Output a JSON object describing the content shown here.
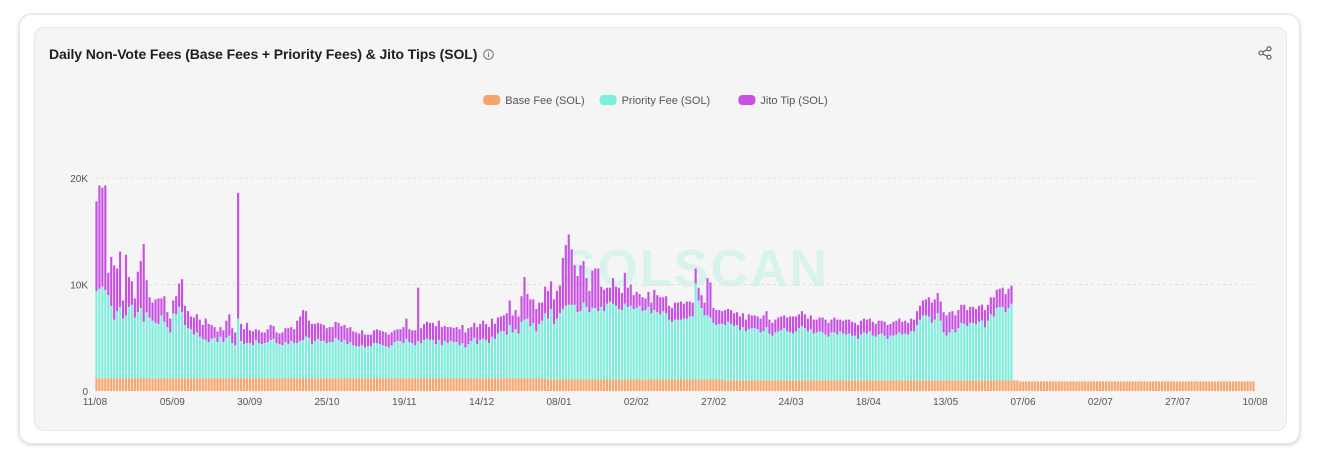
{
  "title": "Daily Non-Vote Fees (Base Fees + Priority Fees) & Jito Tips (SOL)",
  "icons": {
    "info": "info-icon",
    "share": "share-icon"
  },
  "watermark": "SOLSCAN",
  "colors": {
    "base_fee": "#f7a36a",
    "priority_fee": "#7feedd",
    "jito_tip": "#c84fe3",
    "grid": "#e2e2e2",
    "axis_text": "#555555"
  },
  "chart_data": {
    "type": "bar",
    "stacked": true,
    "title": "Daily Non-Vote Fees (Base Fees + Priority Fees) & Jito Tips (SOL)",
    "xlabel": "",
    "ylabel": "",
    "ylim": [
      0,
      20000
    ],
    "yticks": [
      {
        "value": 0,
        "label": "0"
      },
      {
        "value": 10000,
        "label": "10K"
      },
      {
        "value": 20000,
        "label": "20K"
      }
    ],
    "grid": true,
    "legend_position": "top-center",
    "x_tick_labels": [
      "11/08",
      "05/09",
      "30/09",
      "25/10",
      "19/11",
      "14/12",
      "08/01",
      "02/02",
      "27/02",
      "24/03",
      "18/04",
      "13/05",
      "07/06",
      "02/07",
      "27/07",
      "10/08"
    ],
    "series": [
      {
        "name": "Base Fee (SOL)",
        "color": "#f7a36a",
        "values": [
          1200,
          1200,
          1200,
          1200,
          1200,
          1200,
          1200,
          1200,
          1200,
          1200,
          1200,
          1200,
          1200,
          1200,
          1200,
          1200,
          1200,
          1200,
          1200,
          1200,
          1200,
          1200,
          1200,
          1200,
          1200,
          1200,
          1200,
          1200,
          1200,
          1200,
          1200,
          1200,
          1200,
          1200,
          1200,
          1200,
          1200,
          1200,
          1200,
          1200,
          1200,
          1200,
          1200,
          1200,
          1200,
          1200,
          1200,
          1200,
          1200,
          1200,
          1200,
          1200,
          1200,
          1200,
          1200,
          1200,
          1200,
          1200,
          1200,
          1200,
          1200,
          1200,
          1200,
          1200,
          1200,
          1200,
          1200,
          1200,
          1200,
          1200,
          1200,
          1200,
          1200,
          1200,
          1200,
          1200,
          1200,
          1200,
          1200,
          1200,
          1200,
          1200,
          1200,
          1200,
          1200,
          1200,
          1200,
          1200,
          1200,
          1200,
          1200,
          1200,
          1200,
          1200,
          1200,
          1200,
          1200,
          1200,
          1200,
          1200,
          1200,
          1200,
          1200,
          1200,
          1200,
          1200,
          1200,
          1200,
          1200,
          1200,
          1200,
          1200,
          1200,
          1200,
          1200,
          1200,
          1200,
          1200,
          1200,
          1200,
          1200,
          1200,
          1200,
          1200,
          1200,
          1200,
          1200,
          1200,
          1200,
          1200,
          1200,
          1200,
          1200,
          1200,
          1200,
          1200,
          1200,
          1200,
          1200,
          1200,
          1200,
          1200,
          1200,
          1200,
          1200,
          1200,
          1200,
          1200,
          1200,
          1200,
          1200,
          1200,
          1200,
          1100,
          1100,
          1100,
          1100,
          1100,
          1100,
          1100,
          1100,
          1100,
          1100,
          1100,
          1100,
          1100,
          1100,
          1100,
          1100,
          1100,
          1100,
          1100,
          1100,
          1100,
          1100,
          1100,
          1100,
          1100,
          1100,
          1100,
          1100,
          1100,
          1100,
          1100,
          1100,
          1100,
          1100,
          1100,
          1100,
          1100,
          1100,
          1100,
          1100,
          1100,
          1100,
          1100,
          1100,
          1100,
          1100,
          1100,
          1100,
          1100,
          1100,
          1100,
          1100,
          1100,
          1100,
          1100,
          1100,
          1100,
          1100,
          1100,
          1100,
          1000,
          1000,
          1000,
          1000,
          1000,
          1000,
          1000,
          1000,
          1000,
          1000,
          1000,
          1000,
          1000,
          1000,
          1000,
          1000,
          1000,
          1000,
          1000,
          1000,
          1000,
          1000,
          1000,
          1000,
          1000,
          1000,
          1000,
          1000,
          1000,
          1000,
          1000,
          1000,
          1000,
          1000,
          1000,
          1000,
          1000,
          1000,
          1000,
          1000,
          1000,
          1000,
          1000,
          1000,
          1000,
          1000,
          1000,
          1000,
          1000,
          1000,
          1000,
          1000,
          1000,
          1000,
          1000,
          1000,
          1000,
          1000,
          1000,
          1000,
          1000,
          1000,
          1000,
          1000,
          1000,
          1000,
          1000,
          1000,
          1000,
          1000,
          1000,
          1000,
          1000,
          1000,
          1000,
          1000,
          1000,
          1000,
          1000,
          1000,
          1000,
          1000,
          1000,
          1000,
          1000,
          1000,
          1000,
          1000,
          1000,
          1000,
          1000,
          1000,
          1000,
          1000,
          1000,
          1000,
          1000,
          1000,
          1000,
          1000,
          900,
          900,
          900,
          900,
          900,
          900,
          900,
          900,
          900,
          900,
          900,
          900,
          900,
          900,
          900,
          900,
          900,
          900,
          900,
          900,
          900,
          900,
          900,
          900,
          900,
          900,
          900,
          900,
          900,
          900,
          900,
          900,
          900,
          900,
          900,
          900,
          900,
          900,
          900,
          900,
          900,
          900,
          900,
          900,
          900,
          900,
          900,
          900,
          900,
          900,
          900,
          900,
          900,
          900,
          900,
          900,
          900,
          900,
          900,
          900,
          900,
          900,
          900,
          900,
          900,
          900,
          900,
          900,
          900,
          900,
          900,
          900,
          900,
          900,
          900,
          900,
          900,
          900,
          900,
          900
        ]
      },
      {
        "name": "Priority Fee (SOL)",
        "color": "#7feedd",
        "values": [
          8200,
          8400,
          8600,
          8300,
          7800,
          6800,
          5500,
          6300,
          6700,
          5600,
          5900,
          6700,
          6900,
          5700,
          6200,
          6600,
          5300,
          6200,
          5700,
          5400,
          5200,
          5100,
          5900,
          5300,
          4800,
          4300,
          6100,
          6000,
          6700,
          6200,
          5000,
          4700,
          4600,
          4100,
          4300,
          3900,
          3700,
          3600,
          3400,
          3700,
          3800,
          3400,
          3900,
          3400,
          3800,
          4000,
          3300,
          3100,
          5600,
          3500,
          3200,
          3300,
          3300,
          3100,
          3600,
          3300,
          3200,
          3300,
          3400,
          3600,
          3700,
          3300,
          3200,
          3100,
          3400,
          3200,
          3500,
          3300,
          3300,
          3500,
          3600,
          3900,
          3800,
          3200,
          3500,
          3700,
          3500,
          3500,
          3300,
          3400,
          3400,
          3800,
          3600,
          3400,
          3600,
          3200,
          3400,
          3100,
          3000,
          3000,
          3100,
          2900,
          3000,
          3000,
          3300,
          3300,
          3200,
          3100,
          3000,
          2900,
          3100,
          3400,
          3500,
          3500,
          3300,
          3700,
          3400,
          3300,
          3100,
          3500,
          3300,
          3600,
          3700,
          3600,
          3600,
          3200,
          3600,
          3100,
          3500,
          3300,
          3500,
          3400,
          3400,
          3100,
          3300,
          2900,
          3200,
          3500,
          3800,
          3200,
          3600,
          3700,
          3600,
          3300,
          3900,
          3700,
          4200,
          4400,
          4400,
          4100,
          5000,
          4300,
          4600,
          4200,
          5300,
          5500,
          5600,
          4900,
          5200,
          4400,
          5100,
          5400,
          6100,
          5700,
          6600,
          5200,
          5700,
          6200,
          6600,
          6900,
          7000,
          7000,
          7000,
          6300,
          6400,
          7200,
          6800,
          6300,
          6700,
          6700,
          6400,
          6800,
          6400,
          7100,
          7300,
          7100,
          6900,
          6600,
          6500,
          7100,
          6800,
          6900,
          6600,
          6700,
          6900,
          6400,
          6500,
          6800,
          6200,
          6500,
          6300,
          6100,
          6400,
          6200,
          5600,
          5400,
          5600,
          5600,
          5600,
          5700,
          5700,
          5900,
          5900,
          9000,
          7400,
          6700,
          6000,
          6000,
          5800,
          5300,
          5100,
          5200,
          5200,
          5200,
          5500,
          5300,
          5100,
          5200,
          4700,
          5000,
          4600,
          4800,
          4900,
          4900,
          4800,
          4500,
          4600,
          5000,
          4400,
          4200,
          4500,
          4600,
          4700,
          4900,
          4600,
          4500,
          4400,
          4600,
          4900,
          5100,
          4900,
          4600,
          4800,
          4400,
          4500,
          4600,
          4500,
          4300,
          4100,
          4500,
          4500,
          4300,
          4600,
          4400,
          4300,
          4400,
          4200,
          4200,
          3900,
          4300,
          4500,
          4400,
          4600,
          4200,
          4100,
          4300,
          4400,
          4200,
          3900,
          4200,
          4200,
          4300,
          4500,
          4300,
          4400,
          4300,
          4600,
          4600,
          5200,
          5700,
          6100,
          6100,
          6000,
          5400,
          5700,
          6300,
          5600,
          4500,
          4200,
          4500,
          4800,
          4500,
          4900,
          5400,
          5300,
          5100,
          5400,
          5400,
          5300,
          5500,
          5600,
          5000,
          5600,
          6200,
          6000,
          6800,
          6900,
          6900,
          6400,
          6800,
          7200
        ]
      },
      {
        "name": "Jito Tip (SOL)",
        "color": "#c84fe3",
        "values": [
          8400,
          9700,
          9300,
          9800,
          2100,
          4600,
          5100,
          4000,
          5200,
          1700,
          5700,
          2800,
          2200,
          1800,
          3800,
          4400,
          7300,
          3000,
          1900,
          1700,
          2200,
          2400,
          1600,
          2400,
          1400,
          1300,
          1200,
          1700,
          2200,
          3100,
          1800,
          1600,
          1200,
          1600,
          1700,
          1600,
          1300,
          2000,
          1700,
          1300,
          1000,
          1000,
          900,
          1100,
          1600,
          2000,
          1400,
          1200,
          11800,
          1600,
          1400,
          1900,
          1200,
          1300,
          1000,
          1200,
          1100,
          1000,
          1200,
          1400,
          1200,
          1000,
          1000,
          1200,
          1300,
          1500,
          1300,
          1300,
          2100,
          2300,
          2800,
          2400,
          1600,
          1900,
          1600,
          1500,
          1600,
          1500,
          1400,
          1400,
          1400,
          1500,
          1600,
          1500,
          1400,
          1500,
          1400,
          1300,
          1300,
          1200,
          1400,
          1200,
          1100,
          1100,
          1200,
          1300,
          1300,
          1300,
          1300,
          1200,
          1200,
          1100,
          1100,
          1100,
          1500,
          1900,
          1200,
          1200,
          1400,
          5000,
          1400,
          1500,
          1600,
          1600,
          1600,
          1700,
          1800,
          1700,
          1400,
          1500,
          1300,
          1300,
          1400,
          1500,
          1700,
          1400,
          1500,
          1300,
          1400,
          1600,
          1500,
          1700,
          1500,
          1500,
          1700,
          1400,
          1500,
          1400,
          1500,
          2000,
          2300,
          1600,
          1800,
          1600,
          2400,
          4000,
          2300,
          2500,
          2200,
          2100,
          2000,
          1700,
          2500,
          2600,
          2600,
          2300,
          2600,
          2600,
          4800,
          5700,
          6600,
          5200,
          3700,
          3400,
          4300,
          3900,
          2700,
          2000,
          3500,
          3700,
          4000,
          1900,
          2000,
          1500,
          1300,
          2400,
          1800,
          2000,
          1600,
          2900,
          1800,
          2000,
          1300,
          1500,
          1100,
          1300,
          1100,
          1400,
          1000,
          1900,
          1600,
          1600,
          1300,
          1600,
          1300,
          1300,
          1600,
          1600,
          1700,
          1400,
          1600,
          1400,
          1300,
          1400,
          1200,
          1200,
          1200,
          3500,
          3300,
          1400,
          1400,
          1300,
          1200,
          1400,
          1200,
          1300,
          1200,
          1200,
          1300,
          1300,
          1100,
          1400,
          1200,
          1200,
          1200,
          1300,
          1500,
          1500,
          1300,
          1200,
          1200,
          1300,
          1300,
          1200,
          1300,
          1500,
          1600,
          1400,
          1300,
          1400,
          1300,
          1200,
          1300,
          1300,
          1200,
          1300,
          1400,
          1400,
          1300,
          1200,
          1400,
          1400,
          1100,
          1200,
          1400,
          1300,
          1300,
          1200,
          1300,
          1300,
          1300,
          1300,
          1200,
          1300,
          1200,
          1300,
          1200,
          1300,
          1300,
          1100,
          1300,
          1300,
          1300,
          1200,
          1200,
          1100,
          1200,
          1100,
          1300,
          1300,
          1400,
          1500,
          1800,
          1900,
          1900,
          1900,
          1800,
          1900,
          1900,
          1900,
          1700,
          1600,
          1700,
          1700,
          1800,
          1500,
          1500,
          1500,
          1400,
          1500,
          1500,
          1600,
          1500,
          1600,
          1800,
          1700,
          1700,
          1800,
          1700,
          1800,
          1700,
          1700
        ]
      }
    ]
  }
}
